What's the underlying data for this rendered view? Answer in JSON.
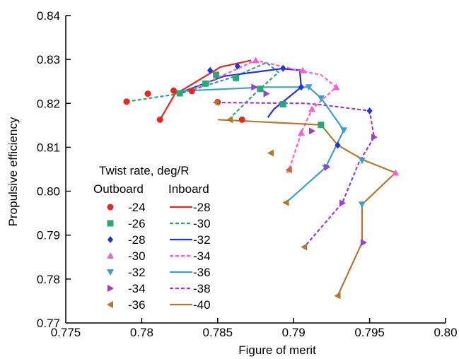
{
  "chart_data": {
    "type": "line",
    "title": "",
    "xlabel": "Figure of merit",
    "ylabel": "Propulsive efficiency",
    "xlim": [
      0.775,
      0.8
    ],
    "ylim": [
      0.77,
      0.84
    ],
    "xticks": [
      0.775,
      0.78,
      0.785,
      0.79,
      0.795,
      0.8
    ],
    "xtick_labels": [
      "0.775",
      "0.78",
      "0.785",
      "0.79",
      "0.795",
      "0.80"
    ],
    "yticks": [
      0.77,
      0.78,
      0.79,
      0.8,
      0.81,
      0.82,
      0.83,
      0.84
    ],
    "ytick_labels": [
      "0.77",
      "0.78",
      "0.79",
      "0.80",
      "0.81",
      "0.82",
      "0.83",
      "0.84"
    ],
    "grid": false,
    "legend": {
      "title": "Twist rate, deg/R",
      "col1_header": "Outboard",
      "col2_header": "Inboard",
      "placement": "lower-left"
    },
    "outboard_markers": [
      {
        "label": "-24",
        "color": "#e8281e",
        "shape": "circle"
      },
      {
        "label": "-26",
        "color": "#28a878",
        "shape": "square"
      },
      {
        "label": "-28",
        "color": "#1e32e6",
        "shape": "diamond"
      },
      {
        "label": "-30",
        "color": "#ff5adc",
        "shape": "triangle-up"
      },
      {
        "label": "-32",
        "color": "#3ca0c8",
        "shape": "triangle-down"
      },
      {
        "label": "-34",
        "color": "#9b3cd2",
        "shape": "triangle-right"
      },
      {
        "label": "-36",
        "color": "#b4782d",
        "shape": "triangle-left"
      }
    ],
    "inboard_lines": [
      {
        "name": "-28",
        "color": "#e8281e",
        "dash": "solid",
        "points": [
          [
            0.7812,
            0.8163
          ],
          [
            0.7822,
            0.8222
          ],
          [
            0.7828,
            0.8233
          ],
          [
            0.7852,
            0.8283
          ],
          [
            0.7872,
            0.8298
          ]
        ]
      },
      {
        "name": "-30",
        "color": "#28a878",
        "dash": "dashed",
        "points": [
          [
            0.779,
            0.8204
          ],
          [
            0.7825,
            0.8222
          ],
          [
            0.7862,
            0.8262
          ],
          [
            0.7882,
            0.8293
          ],
          [
            0.789,
            0.8271
          ],
          [
            0.7875,
            0.8224
          ],
          [
            0.7858,
            0.8166
          ]
        ]
      },
      {
        "name": "-32",
        "color": "#1e32e6",
        "solid_flag": true,
        "dash": "solid",
        "points": [
          [
            0.7826,
            0.8225
          ],
          [
            0.7854,
            0.8262
          ],
          [
            0.7892,
            0.8279
          ],
          [
            0.7904,
            0.8276
          ],
          [
            0.7905,
            0.8237
          ],
          [
            0.7887,
            0.8187
          ],
          [
            0.7883,
            0.8168
          ]
        ]
      },
      {
        "name": "-34",
        "color": "#ff5adc",
        "dash": "dashed",
        "points": [
          [
            0.783,
            0.8227
          ],
          [
            0.7875,
            0.8298
          ],
          [
            0.7906,
            0.8273
          ],
          [
            0.7918,
            0.8265
          ],
          [
            0.7928,
            0.8237
          ],
          [
            0.7912,
            0.8187
          ],
          [
            0.7905,
            0.8133
          ],
          [
            0.7897,
            0.8049
          ]
        ]
      },
      {
        "name": "-36",
        "color": "#3ca0c8",
        "dash": "solid",
        "points": [
          [
            0.7824,
            0.8228
          ],
          [
            0.7882,
            0.8237
          ],
          [
            0.791,
            0.8237
          ],
          [
            0.7918,
            0.8212
          ],
          [
            0.7933,
            0.8139
          ],
          [
            0.7921,
            0.8054
          ],
          [
            0.7895,
            0.7974
          ]
        ]
      },
      {
        "name": "-38",
        "color": "#9b3cd2",
        "dash": "dashed",
        "points": [
          [
            0.7849,
            0.8202
          ],
          [
            0.7908,
            0.82
          ],
          [
            0.7918,
            0.8197
          ],
          [
            0.795,
            0.8183
          ],
          [
            0.7953,
            0.8123
          ],
          [
            0.7943,
            0.8066
          ],
          [
            0.7932,
            0.7973
          ],
          [
            0.7907,
            0.7873
          ]
        ]
      },
      {
        "name": "-40",
        "color": "#b4782d",
        "dash": "solid",
        "points": [
          [
            0.785,
            0.8163
          ],
          [
            0.7918,
            0.8151
          ],
          [
            0.7929,
            0.8105
          ],
          [
            0.7946,
            0.8071
          ],
          [
            0.7967,
            0.8042
          ],
          [
            0.7945,
            0.797
          ],
          [
            0.7945,
            0.7883
          ],
          [
            0.7929,
            0.7762
          ]
        ]
      }
    ],
    "markers": [
      {
        "shape": "circle",
        "color": "#e8281e",
        "points": [
          [
            0.779,
            0.8204
          ],
          [
            0.7804,
            0.8222
          ],
          [
            0.7812,
            0.8163
          ],
          [
            0.7821,
            0.8229
          ],
          [
            0.7833,
            0.8228
          ],
          [
            0.785,
            0.8203
          ],
          [
            0.7866,
            0.8163
          ]
        ]
      },
      {
        "shape": "square",
        "color": "#28a878",
        "points": [
          [
            0.7825,
            0.8223
          ],
          [
            0.7842,
            0.8245
          ],
          [
            0.7849,
            0.8265
          ],
          [
            0.7862,
            0.8258
          ],
          [
            0.7878,
            0.8233
          ],
          [
            0.7893,
            0.8198
          ],
          [
            0.7918,
            0.8151
          ]
        ]
      },
      {
        "shape": "diamond",
        "color": "#1e32e6",
        "points": [
          [
            0.7845,
            0.8275
          ],
          [
            0.7863,
            0.8285
          ],
          [
            0.7893,
            0.828
          ],
          [
            0.7905,
            0.8237
          ],
          [
            0.7929,
            0.8105
          ],
          [
            0.795,
            0.8183
          ]
        ]
      },
      {
        "shape": "triangle-up",
        "color": "#ff5adc",
        "points": [
          [
            0.7875,
            0.8298
          ],
          [
            0.7906,
            0.8275
          ],
          [
            0.7928,
            0.8237
          ],
          [
            0.7912,
            0.8187
          ],
          [
            0.7905,
            0.8133
          ],
          [
            0.7897,
            0.8049
          ],
          [
            0.7967,
            0.8042
          ]
        ]
      },
      {
        "shape": "triangle-down",
        "color": "#3ca0c8",
        "points": [
          [
            0.791,
            0.8237
          ],
          [
            0.7918,
            0.8212
          ],
          [
            0.7933,
            0.8139
          ],
          [
            0.7921,
            0.8054
          ],
          [
            0.7945,
            0.807
          ],
          [
            0.7945,
            0.797
          ]
        ]
      },
      {
        "shape": "triangle-right",
        "color": "#9b3cd2",
        "points": [
          [
            0.7874,
            0.8237
          ],
          [
            0.7882,
            0.8222
          ],
          [
            0.7912,
            0.8137
          ],
          [
            0.7922,
            0.8055
          ],
          [
            0.7932,
            0.7973
          ],
          [
            0.7953,
            0.8123
          ],
          [
            0.7946,
            0.7883
          ]
        ]
      },
      {
        "shape": "triangle-left",
        "color": "#b4782d",
        "points": [
          [
            0.7849,
            0.8202
          ],
          [
            0.7858,
            0.8163
          ],
          [
            0.7885,
            0.8087
          ],
          [
            0.7897,
            0.8049
          ],
          [
            0.7895,
            0.7974
          ],
          [
            0.7907,
            0.7873
          ],
          [
            0.7929,
            0.7762
          ]
        ]
      }
    ]
  }
}
